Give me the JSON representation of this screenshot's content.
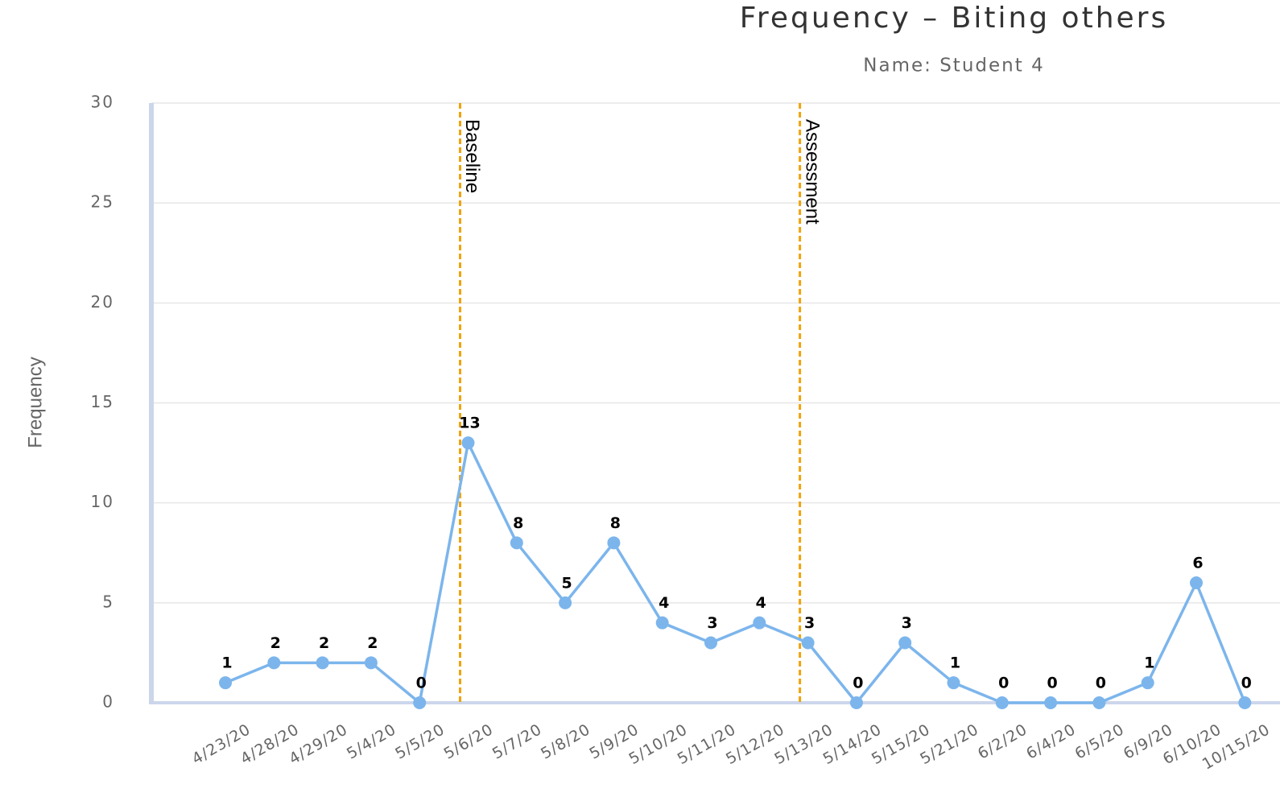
{
  "chart_data": {
    "type": "line",
    "title": "Frequency – Biting others",
    "subtitle": "Name: Student 4",
    "y_label": "Frequency",
    "categories": [
      "4/23/20",
      "4/28/20",
      "4/29/20",
      "5/4/20",
      "5/5/20",
      "5/6/20",
      "5/7/20",
      "5/8/20",
      "5/9/20",
      "5/10/20",
      "5/11/20",
      "5/12/20",
      "5/13/20",
      "5/14/20",
      "5/15/20",
      "5/21/20",
      "6/2/20",
      "6/4/20",
      "6/5/20",
      "6/9/20",
      "6/10/20",
      "10/15/20"
    ],
    "series": [
      {
        "name": "Frequency",
        "color": "#7cb5ec",
        "values": [
          1,
          2,
          2,
          2,
          0,
          13,
          8,
          5,
          8,
          4,
          3,
          4,
          3,
          0,
          3,
          1,
          0,
          0,
          0,
          1,
          6,
          0
        ]
      }
    ],
    "annotations": [
      {
        "text": "Baseline",
        "category": "5/6/20",
        "color": "#f0a30a"
      },
      {
        "text": "Assessment",
        "category": "5/13/20",
        "color": "#f0a30a"
      }
    ],
    "ylim": [
      0,
      30
    ],
    "yticks": [
      0,
      5,
      10,
      15,
      20,
      25,
      30
    ],
    "grid": true
  }
}
